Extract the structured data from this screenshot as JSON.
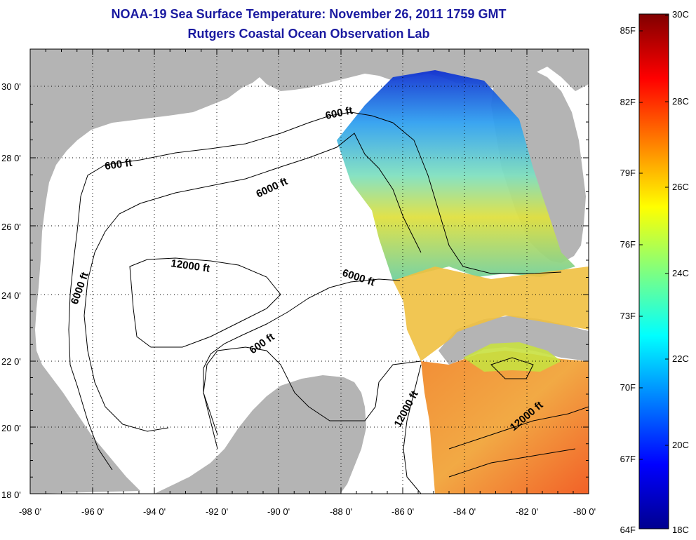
{
  "title_line1": "NOAA-19 Sea Surface Temperature:  November 26, 2011 1759 GMT",
  "title_line2": "Rutgers Coastal Ocean Observation Lab",
  "lat_labels": [
    "18 0'",
    "20 0'",
    "22 0'",
    "24 0'",
    "26 0'",
    "28 0'",
    "30 0'"
  ],
  "lon_labels": [
    "-98 0'",
    "-96 0'",
    "-94 0'",
    "-92 0'",
    "-90 0'",
    "-88 0'",
    "-86 0'",
    "-84 0'",
    "-82 0'",
    "-80 0'"
  ],
  "colorbar_f": [
    "85F",
    "82F",
    "79F",
    "76F",
    "73F",
    "70F",
    "67F",
    "64F"
  ],
  "colorbar_c": [
    "30C",
    "28C",
    "26C",
    "24C",
    "22C",
    "20C",
    "18C"
  ],
  "contours": [
    {
      "id": "c600a",
      "text": "600 ft"
    },
    {
      "id": "c600b",
      "text": "600 ft"
    },
    {
      "id": "c600c",
      "text": "600 ft"
    },
    {
      "id": "c6000a",
      "text": "6000 ft"
    },
    {
      "id": "c6000b",
      "text": "6000 ft"
    },
    {
      "id": "c6000c",
      "text": "6000 ft"
    },
    {
      "id": "c12000a",
      "text": "12000 ft"
    },
    {
      "id": "c12000b",
      "text": "12000 ft"
    },
    {
      "id": "c12000c",
      "text": "12000 ft"
    }
  ],
  "colors": {
    "land": "#b4b4b4",
    "title": "#1a1aa0"
  }
}
